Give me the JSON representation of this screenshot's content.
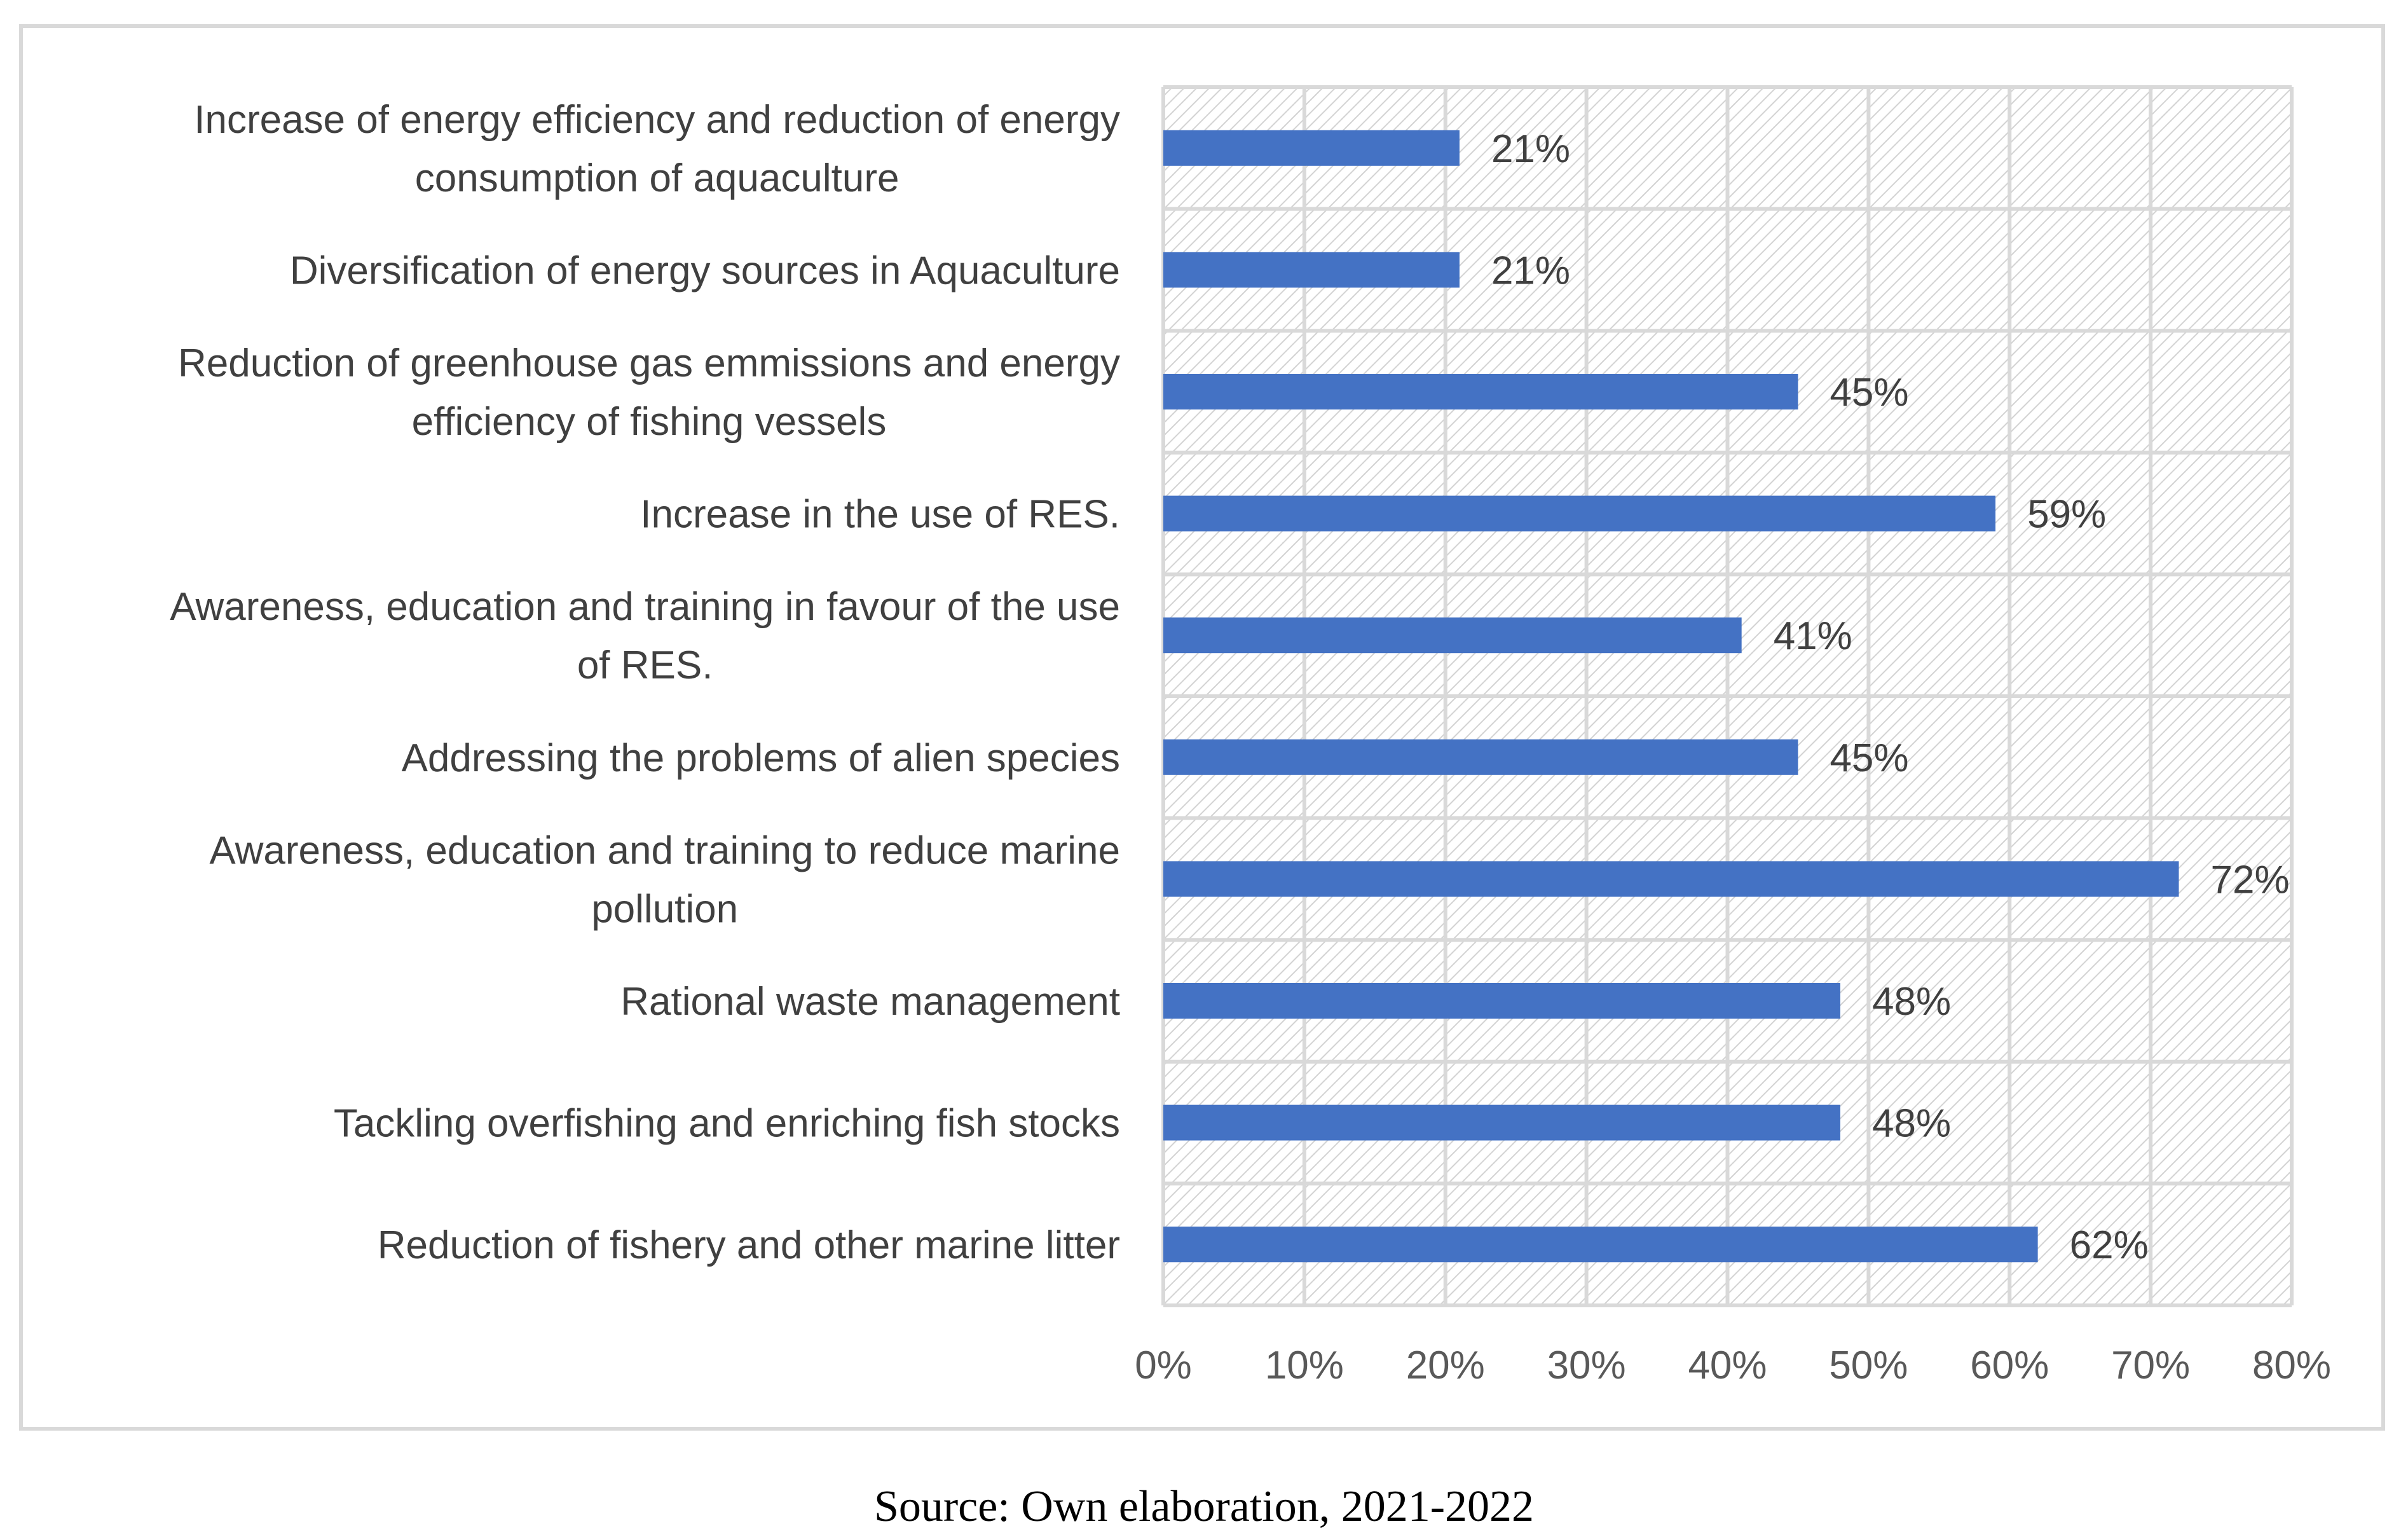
{
  "chart_data": {
    "type": "bar",
    "orientation": "horizontal",
    "categories": [
      [
        "Increase of energy efficiency and reduction of energy",
        "consumption of aquaculture"
      ],
      [
        "Diversification of energy sources in Aquaculture"
      ],
      [
        "Reduction of greenhouse gas emmissions and energy",
        "efficiency of fishing vessels"
      ],
      [
        "Increase in the use of RES."
      ],
      [
        "Awareness, education and training in favour of the use",
        "of RES."
      ],
      [
        "Addressing the problems of alien species"
      ],
      [
        "Awareness, education and training to reduce marine",
        "pollution"
      ],
      [
        "Rational waste management"
      ],
      [
        "Tackling overfishing and enriching fish stocks"
      ],
      [
        "Reduction of fishery and other marine litter"
      ]
    ],
    "values": [
      21,
      21,
      45,
      59,
      41,
      45,
      72,
      48,
      48,
      62
    ],
    "value_labels": [
      "21%",
      "21%",
      "45%",
      "59%",
      "41%",
      "45%",
      "72%",
      "48%",
      "48%",
      "62%"
    ],
    "xticks": [
      "0%",
      "10%",
      "20%",
      "30%",
      "40%",
      "50%",
      "60%",
      "70%",
      "80%"
    ],
    "xlim": [
      0,
      80
    ],
    "xlabel": "",
    "ylabel": "",
    "title": "",
    "grid": true,
    "legend": "none"
  },
  "colors": {
    "bar": "#4472c4",
    "grid": "#d9d9d9",
    "hatch": "#d0d0d0",
    "text": "#404040"
  },
  "source": "Source: Own elaboration, 2021-2022"
}
